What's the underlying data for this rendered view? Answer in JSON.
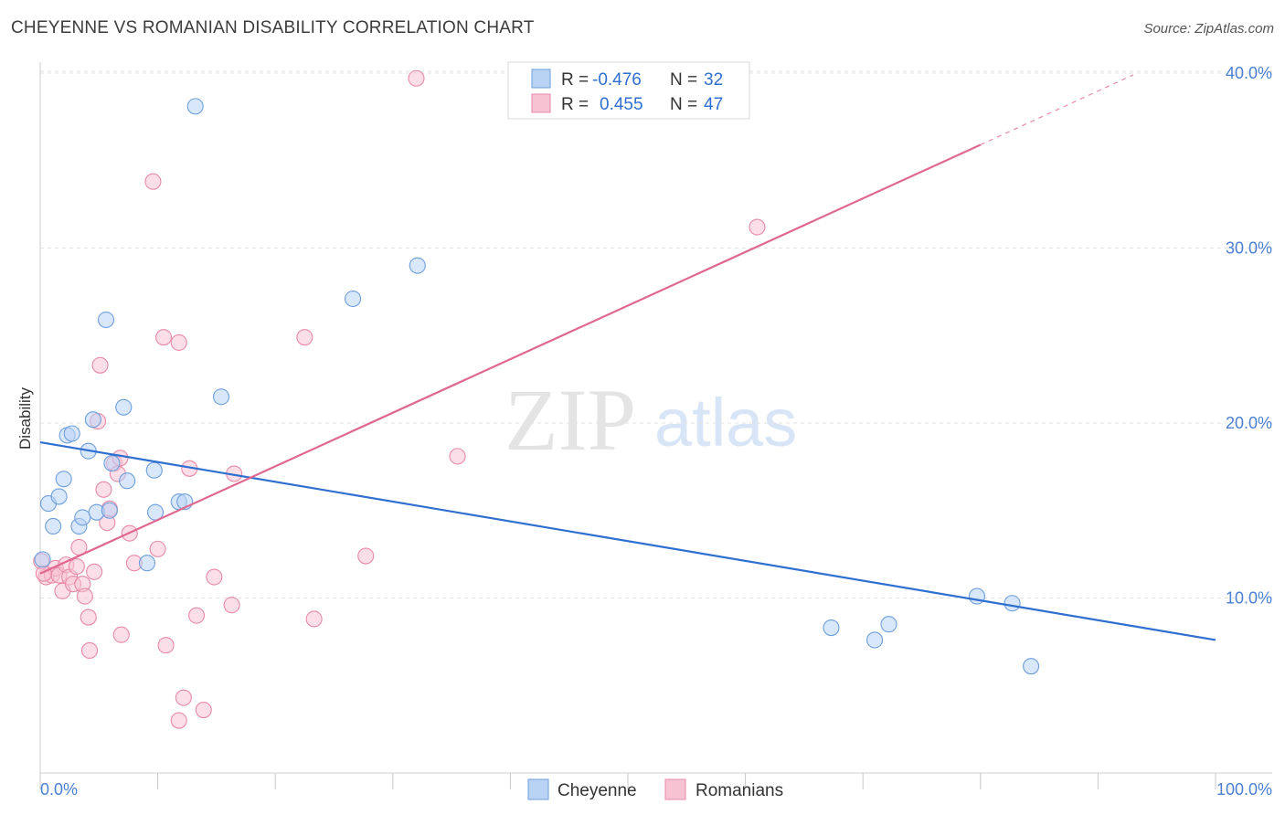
{
  "title": "CHEYENNE VS ROMANIAN DISABILITY CORRELATION CHART",
  "source": "Source: ZipAtlas.com",
  "watermark": {
    "zip": "ZIP",
    "atlas": "atlas"
  },
  "colors": {
    "cheyenne_fill": "#b9d3f5",
    "cheyenne_stroke": "#6e9fdc",
    "cheyenne_line": "#2f6fd0",
    "romanian_fill": "#f7c3d3",
    "romanian_stroke": "#e88aa8",
    "romanian_line": "#e0678f",
    "tick_blue": "#4a7fd1"
  },
  "legend": {
    "rows": [
      {
        "r_label": "R =",
        "r_value": "-0.476",
        "n_label": "N =",
        "n_value": "32"
      },
      {
        "r_label": "R =",
        "r_value": "0.455",
        "n_label": "N =",
        "n_value": "47"
      }
    ]
  },
  "chart_data": {
    "type": "scatter",
    "title": "CHEYENNE VS ROMANIAN DISABILITY CORRELATION CHART",
    "xlabel": "",
    "ylabel": "Disability",
    "xlim": [
      0,
      100
    ],
    "ylim": [
      0,
      40
    ],
    "x_tick_labels": [
      "0.0%",
      "100.0%"
    ],
    "y_ticks": [
      10,
      20,
      30,
      40
    ],
    "y_tick_labels": [
      "10.0%",
      "20.0%",
      "30.0%",
      "40.0%"
    ],
    "legend_position": "bottom-center",
    "series": [
      {
        "name": "Cheyenne",
        "r": -0.476,
        "n": 32,
        "trend": {
          "x0": 0,
          "y0": 18.9,
          "x1": 100,
          "y1": 7.6
        },
        "points": [
          [
            0.2,
            12.2
          ],
          [
            0.7,
            15.4
          ],
          [
            1.1,
            14.1
          ],
          [
            1.6,
            15.8
          ],
          [
            2.0,
            16.8
          ],
          [
            2.3,
            19.3
          ],
          [
            2.7,
            19.4
          ],
          [
            3.3,
            14.1
          ],
          [
            3.6,
            14.6
          ],
          [
            4.1,
            18.4
          ],
          [
            4.5,
            20.2
          ],
          [
            4.8,
            14.9
          ],
          [
            5.6,
            25.9
          ],
          [
            5.9,
            15.0
          ],
          [
            6.1,
            17.7
          ],
          [
            7.1,
            20.9
          ],
          [
            7.4,
            16.7
          ],
          [
            9.1,
            12.0
          ],
          [
            9.7,
            17.3
          ],
          [
            9.8,
            14.9
          ],
          [
            11.8,
            15.5
          ],
          [
            12.3,
            15.5
          ],
          [
            13.2,
            38.1
          ],
          [
            15.4,
            21.5
          ],
          [
            26.6,
            27.1
          ],
          [
            32.1,
            29.0
          ],
          [
            67.3,
            8.3
          ],
          [
            71.0,
            7.6
          ],
          [
            72.2,
            8.5
          ],
          [
            79.7,
            10.1
          ],
          [
            82.7,
            9.7
          ],
          [
            84.3,
            6.1
          ]
        ]
      },
      {
        "name": "Romanians",
        "r": 0.455,
        "n": 47,
        "trend": {
          "x0": 0,
          "y0": 11.4,
          "x1": 80,
          "y1": 35.9,
          "dashed_to_x": 93,
          "dashed_to_y": 39.9
        },
        "points": [
          [
            0.1,
            12.1
          ],
          [
            0.5,
            11.2
          ],
          [
            1.0,
            11.3
          ],
          [
            1.3,
            11.7
          ],
          [
            1.6,
            11.3
          ],
          [
            1.9,
            10.4
          ],
          [
            2.2,
            11.9
          ],
          [
            2.5,
            11.2
          ],
          [
            2.8,
            10.8
          ],
          [
            3.1,
            11.8
          ],
          [
            3.3,
            12.9
          ],
          [
            3.6,
            10.8
          ],
          [
            3.8,
            10.1
          ],
          [
            4.1,
            8.9
          ],
          [
            4.2,
            7.0
          ],
          [
            4.6,
            11.5
          ],
          [
            4.9,
            20.1
          ],
          [
            5.1,
            23.3
          ],
          [
            5.4,
            16.2
          ],
          [
            5.7,
            14.3
          ],
          [
            5.9,
            15.1
          ],
          [
            6.3,
            17.7
          ],
          [
            6.6,
            17.1
          ],
          [
            6.8,
            18.0
          ],
          [
            6.9,
            7.9
          ],
          [
            7.6,
            13.7
          ],
          [
            8.0,
            12.0
          ],
          [
            9.6,
            33.8
          ],
          [
            10.0,
            12.8
          ],
          [
            10.5,
            24.9
          ],
          [
            10.7,
            7.3
          ],
          [
            11.8,
            24.6
          ],
          [
            11.8,
            3.0
          ],
          [
            12.2,
            4.3
          ],
          [
            12.7,
            17.4
          ],
          [
            13.3,
            9.0
          ],
          [
            13.9,
            3.6
          ],
          [
            14.8,
            11.2
          ],
          [
            16.3,
            9.6
          ],
          [
            16.5,
            17.1
          ],
          [
            22.5,
            24.9
          ],
          [
            23.3,
            8.8
          ],
          [
            27.7,
            12.4
          ],
          [
            32.0,
            39.7
          ],
          [
            35.5,
            18.1
          ],
          [
            61.0,
            31.2
          ],
          [
            0.3,
            11.4
          ]
        ]
      }
    ]
  }
}
